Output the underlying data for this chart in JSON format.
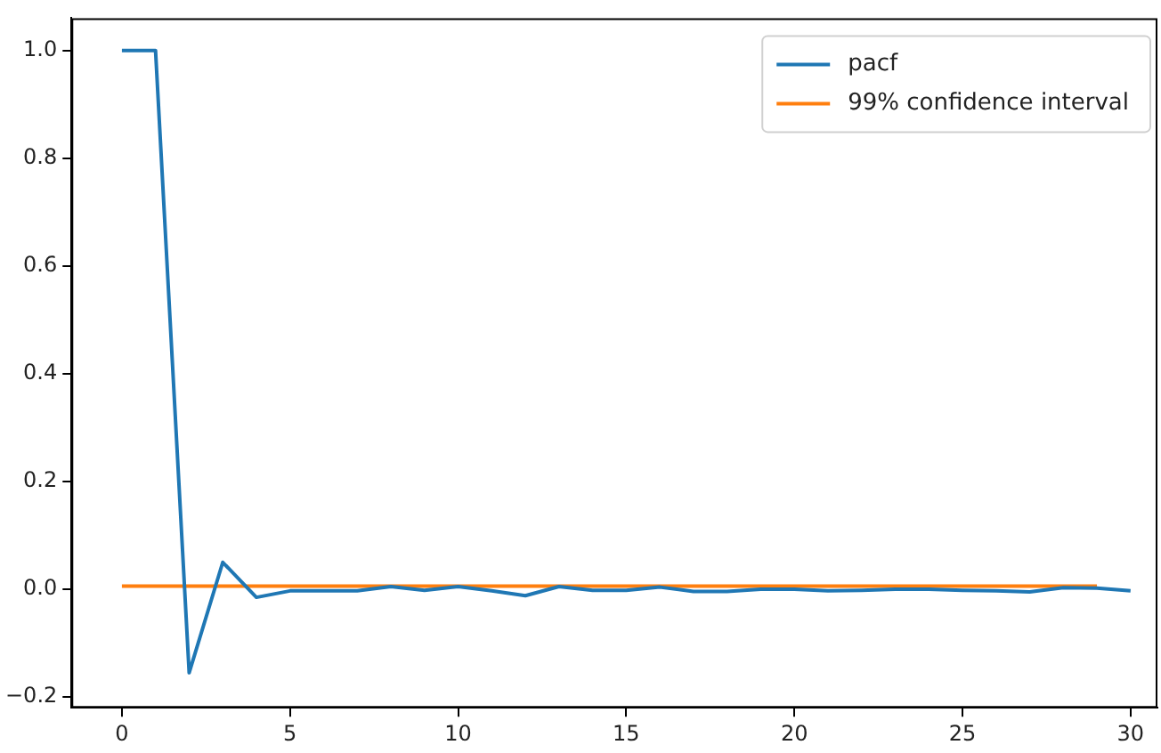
{
  "chart_data": {
    "type": "line",
    "legend": "top right",
    "grid": false,
    "marker": "none",
    "line_style": "solid",
    "xlim": [
      -1.5,
      30.8
    ],
    "xticks": [
      0,
      5,
      10,
      15,
      20,
      25,
      30
    ],
    "ylim": [
      -0.22,
      1.06
    ],
    "yticks": [
      {
        "value": -0.2,
        "label": "−0.2"
      },
      {
        "value": 0,
        "label": "0.0"
      },
      {
        "value": 0.2,
        "label": "0.2"
      },
      {
        "value": 0.4,
        "label": "0.4"
      },
      {
        "value": 0.6,
        "label": "0.6"
      },
      {
        "value": 0.8,
        "label": "0.8"
      },
      {
        "value": 1,
        "label": "1.0"
      }
    ],
    "series": [
      {
        "name": "pacf",
        "color": "#1f77b4",
        "x": [
          0,
          1,
          2,
          3,
          4,
          5,
          6,
          7,
          8,
          9,
          10,
          11,
          12,
          13,
          14,
          15,
          16,
          17,
          18,
          19,
          20,
          21,
          22,
          23,
          24,
          25,
          26,
          27,
          28,
          29,
          30
        ],
        "values": [
          1.0,
          1.0,
          -0.155,
          0.05,
          -0.015,
          -0.003,
          -0.003,
          -0.003,
          0.005,
          -0.002,
          0.005,
          -0.003,
          -0.012,
          0.005,
          -0.002,
          -0.002,
          0.004,
          -0.004,
          -0.004,
          0,
          0,
          -0.003,
          -0.002,
          0,
          0,
          -0.002,
          -0.003,
          -0.005,
          0.003,
          0.002,
          -0.003
        ]
      },
      {
        "name": "99% confidence interval",
        "color": "#ff7f0e",
        "x": [
          0,
          1,
          2,
          3,
          4,
          5,
          6,
          7,
          8,
          9,
          10,
          11,
          12,
          13,
          14,
          15,
          16,
          17,
          18,
          19,
          20,
          21,
          22,
          23,
          24,
          25,
          26,
          27,
          28,
          29
        ],
        "values": [
          0.006,
          0.006,
          0.006,
          0.006,
          0.006,
          0.006,
          0.006,
          0.006,
          0.006,
          0.006,
          0.006,
          0.006,
          0.006,
          0.006,
          0.006,
          0.006,
          0.006,
          0.006,
          0.006,
          0.006,
          0.006,
          0.006,
          0.006,
          0.006,
          0.006,
          0.006,
          0.006,
          0.006,
          0.006,
          0.006
        ]
      }
    ]
  }
}
